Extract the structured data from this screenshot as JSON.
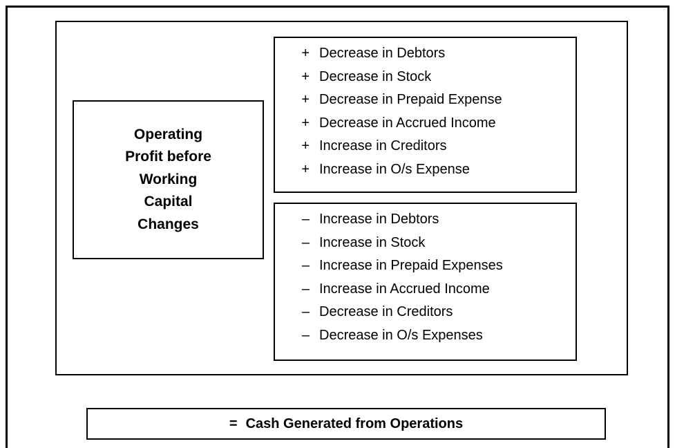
{
  "left_box": {
    "lines": [
      "Operating",
      "Profit before",
      "Working",
      "Capital",
      "Changes"
    ]
  },
  "additions": [
    {
      "sign": "+",
      "text": "Decrease in Debtors"
    },
    {
      "sign": "+",
      "text": "Decrease in Stock"
    },
    {
      "sign": "+",
      "text": "Decrease in Prepaid Expense"
    },
    {
      "sign": "+",
      "text": "Decrease in Accrued Income"
    },
    {
      "sign": "+",
      "text": "Increase in Creditors"
    },
    {
      "sign": "+",
      "text": "Increase in O/s Expense"
    }
  ],
  "deductions": [
    {
      "sign": "–",
      "text": "Increase in Debtors"
    },
    {
      "sign": "–",
      "text": "Increase in Stock"
    },
    {
      "sign": "–",
      "text": "Increase in Prepaid Expenses"
    },
    {
      "sign": "–",
      "text": "Increase in Accrued Income"
    },
    {
      "sign": "–",
      "text": "Decrease in Creditors"
    },
    {
      "sign": "–",
      "text": "Decrease in O/s Expenses"
    }
  ],
  "result": {
    "sign": "=",
    "text": "Cash Generated from Operations"
  }
}
